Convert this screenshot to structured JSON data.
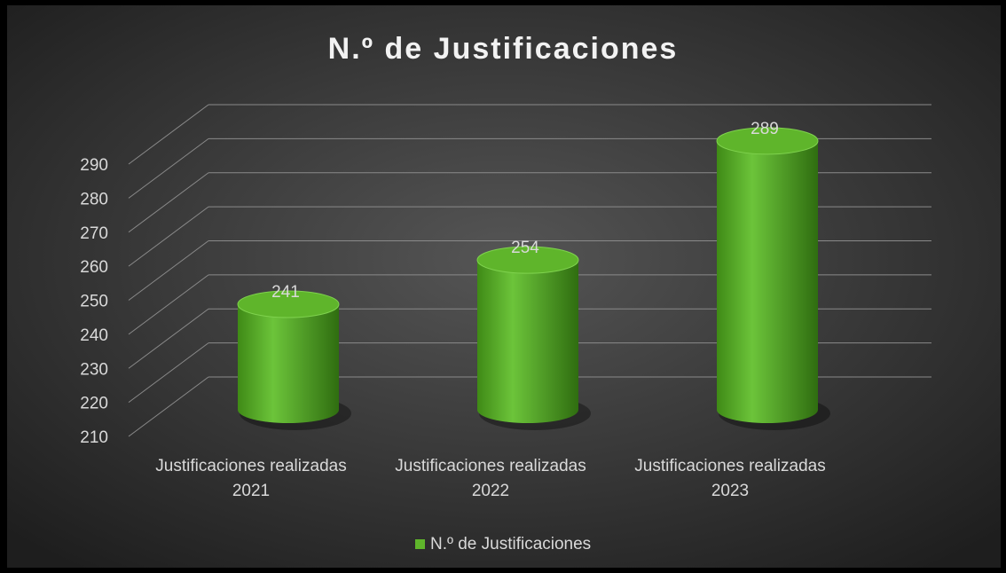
{
  "chart_data": {
    "type": "bar",
    "title": "N.º de Justificaciones",
    "categories": [
      "Justificaciones realizadas 2021",
      "Justificaciones realizadas 2022",
      "Justificaciones realizadas 2023"
    ],
    "series": [
      {
        "name": "N.º de Justificaciones",
        "color": "#5fb52b",
        "values": [
          241,
          254,
          289
        ]
      }
    ],
    "ylim": [
      210,
      290
    ],
    "yticks": [
      210,
      220,
      230,
      240,
      250,
      260,
      270,
      280,
      290
    ],
    "grid": true,
    "legend": "bottom"
  }
}
